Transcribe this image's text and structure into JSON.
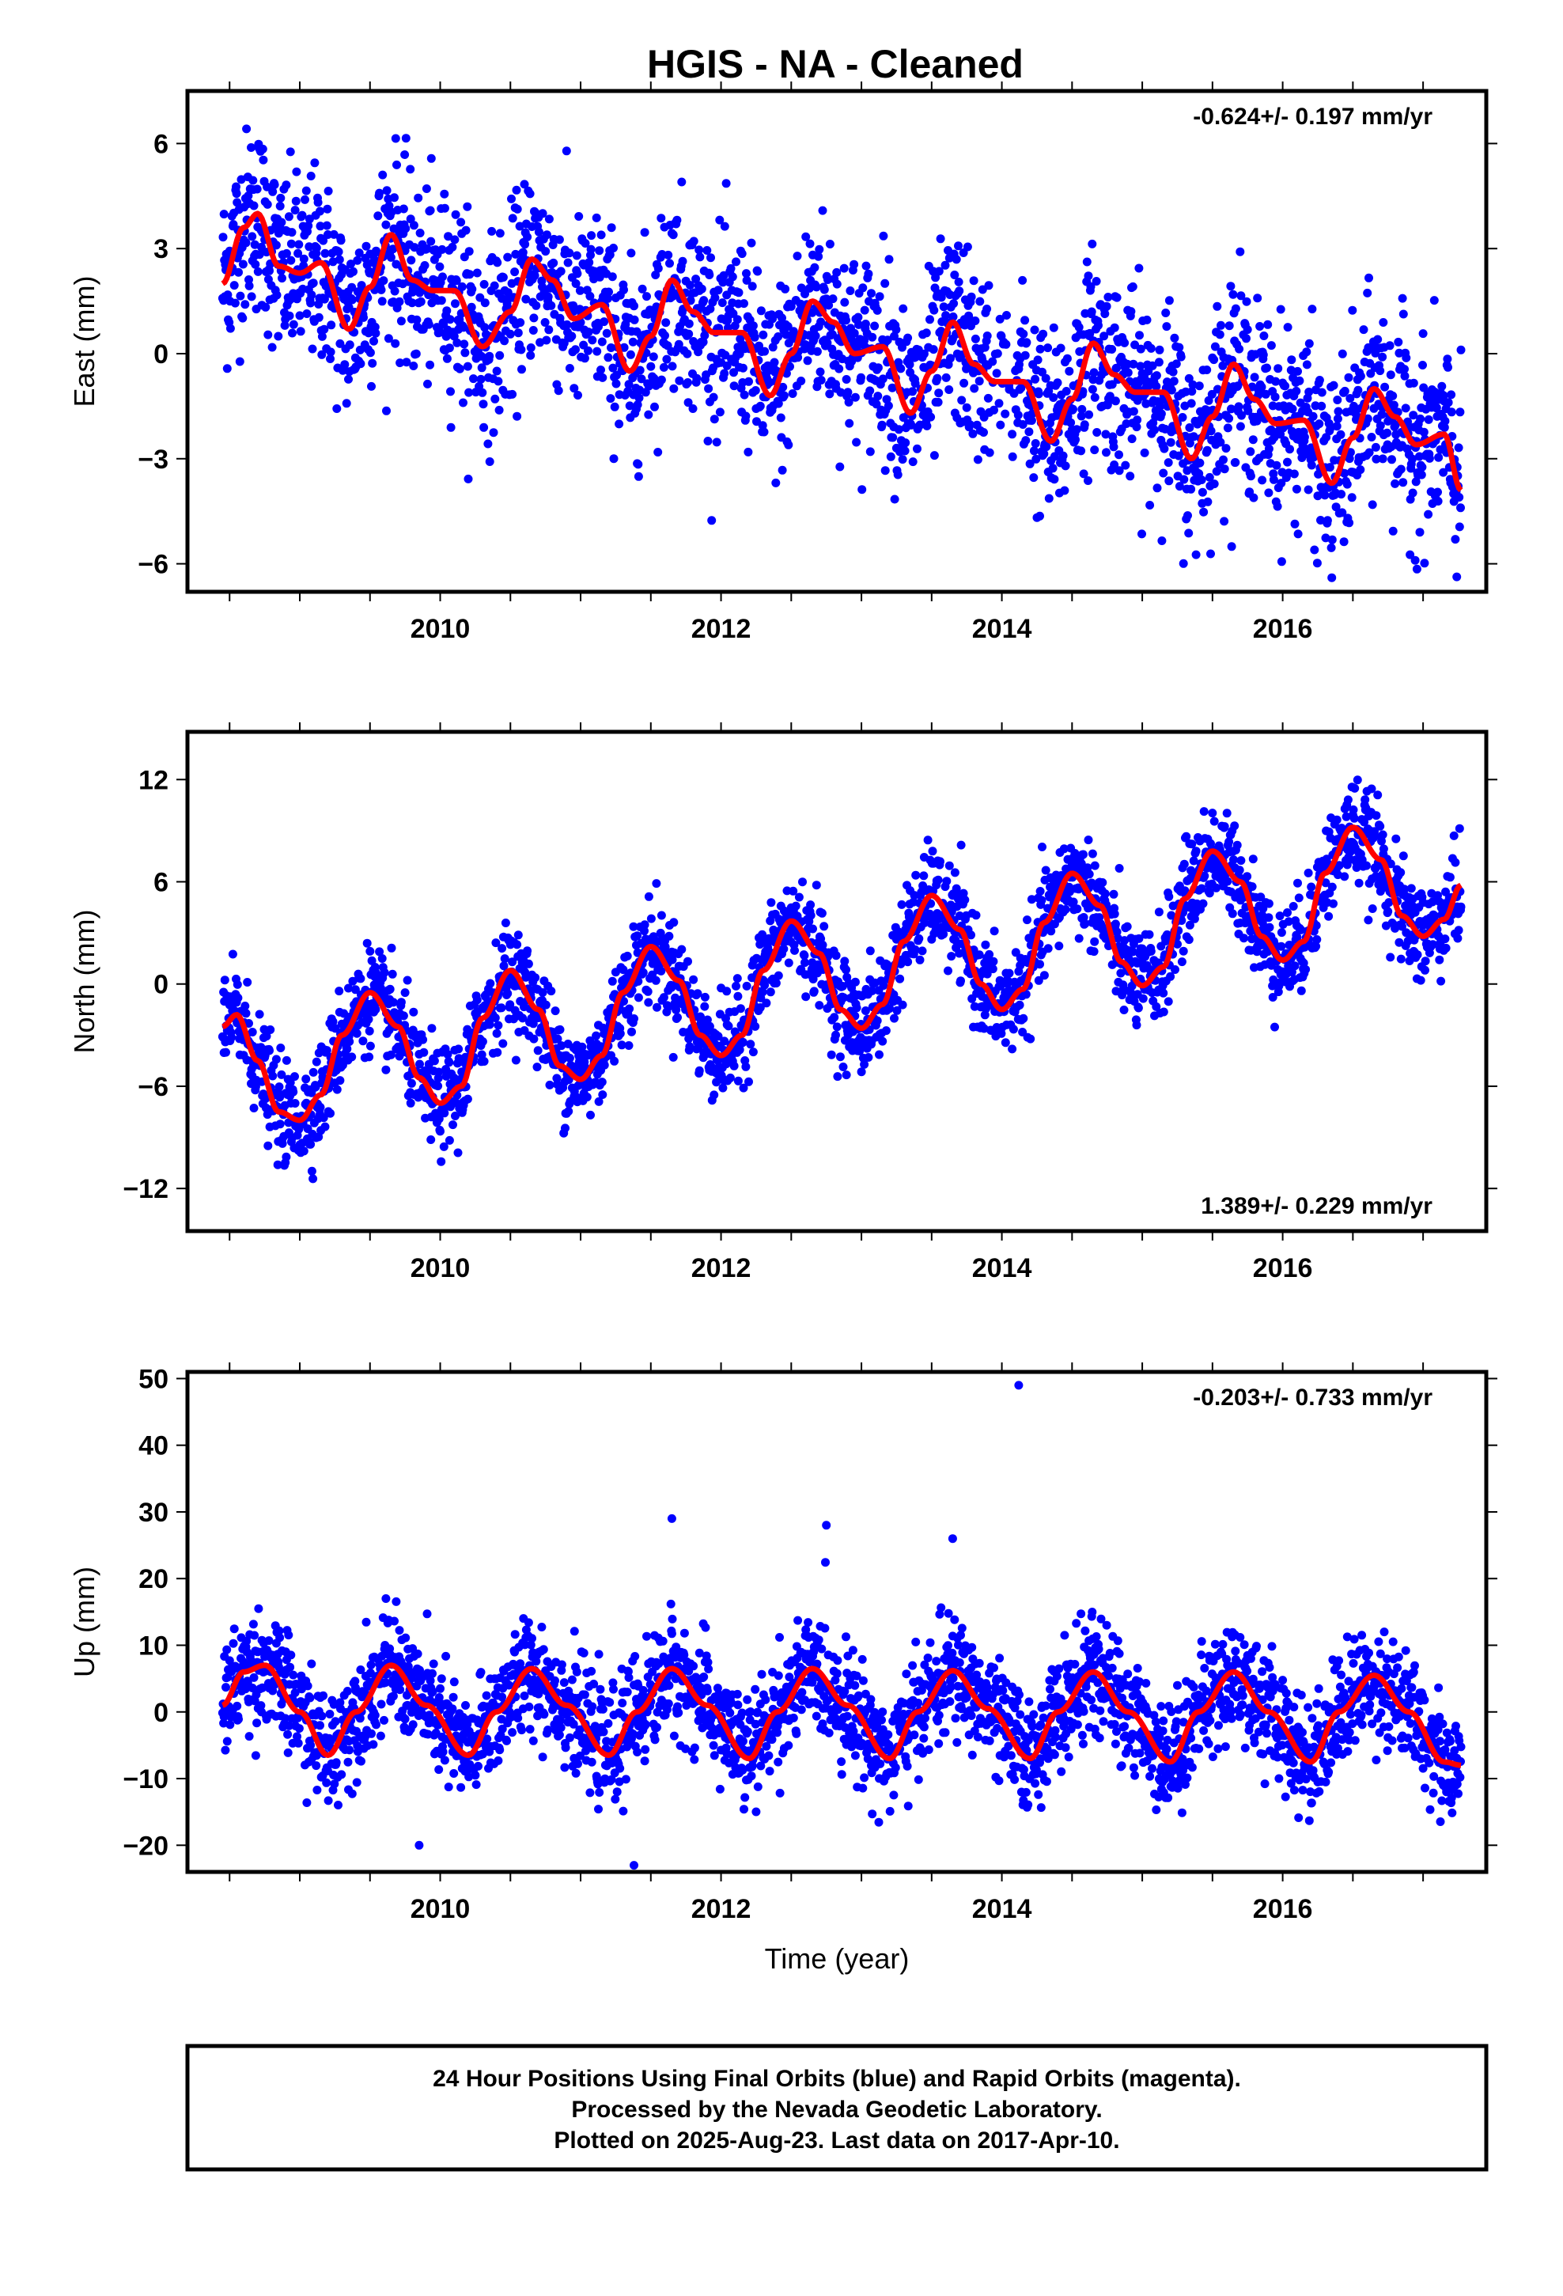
{
  "title": "HGIS  - NA - Cleaned",
  "colors": {
    "points": "#0000ff",
    "model": "#ff0000",
    "frame": "#000000"
  },
  "footer": {
    "line1": "24 Hour Positions Using Final Orbits (blue) and Rapid Orbits (magenta).",
    "line2": "Processed by the Nevada Geodetic Laboratory.",
    "line3": "Plotted on 2025-Aug-23. Last data on 2017-Apr-10."
  },
  "chart_data": [
    {
      "type": "scatter",
      "component": "east",
      "ylabel": "East (mm)",
      "xlabel": "",
      "xlim": [
        2008.2,
        2017.45
      ],
      "ylim": [
        -6.8,
        7.5
      ],
      "xticks": [
        2010,
        2012,
        2014,
        2016
      ],
      "yticks": [
        -6,
        -3,
        0,
        3,
        6
      ],
      "yticklabels": [
        "−6",
        "−3",
        "0",
        "3",
        "6"
      ],
      "rate_label": "-0.624+/- 0.197 mm/yr",
      "rate_position": "top-right",
      "series": [
        {
          "name": "Final Orbits",
          "color": "#0000ff",
          "data_span": [
            2008.45,
            2017.27
          ]
        },
        {
          "name": "Model",
          "color": "#ff0000",
          "x": [
            2008.45,
            2008.6,
            2008.7,
            2008.85,
            2009.0,
            2009.15,
            2009.35,
            2009.5,
            2009.65,
            2009.8,
            2009.95,
            2010.1,
            2010.3,
            2010.5,
            2010.65,
            2010.8,
            2010.95,
            2011.15,
            2011.35,
            2011.5,
            2011.65,
            2011.8,
            2011.95,
            2012.15,
            2012.35,
            2012.5,
            2012.65,
            2012.8,
            2012.95,
            2013.15,
            2013.35,
            2013.5,
            2013.65,
            2013.8,
            2013.95,
            2014.15,
            2014.35,
            2014.5,
            2014.65,
            2014.8,
            2014.95,
            2015.15,
            2015.35,
            2015.5,
            2015.65,
            2015.8,
            2015.95,
            2016.15,
            2016.35,
            2016.5,
            2016.65,
            2016.8,
            2016.95,
            2017.15,
            2017.27
          ],
          "y": [
            2.0,
            3.6,
            4.0,
            2.5,
            2.3,
            2.6,
            0.7,
            1.9,
            3.4,
            2.1,
            1.8,
            1.8,
            0.2,
            1.2,
            2.7,
            2.1,
            1.0,
            1.4,
            -0.5,
            0.5,
            2.1,
            1.2,
            0.6,
            0.6,
            -1.2,
            0.0,
            1.5,
            0.9,
            0.0,
            0.2,
            -1.7,
            -0.5,
            0.9,
            -0.3,
            -0.8,
            -0.8,
            -2.5,
            -1.3,
            0.3,
            -0.6,
            -1.1,
            -1.1,
            -3.0,
            -1.8,
            -0.3,
            -1.3,
            -2.0,
            -1.9,
            -3.7,
            -2.4,
            -1.0,
            -1.8,
            -2.6,
            -2.3,
            -3.9
          ]
        }
      ]
    },
    {
      "type": "scatter",
      "component": "north",
      "ylabel": "North (mm)",
      "xlabel": "",
      "xlim": [
        2008.2,
        2017.45
      ],
      "ylim": [
        -14.5,
        14.8
      ],
      "xticks": [
        2010,
        2012,
        2014,
        2016
      ],
      "yticks": [
        -12,
        -6,
        0,
        6,
        12
      ],
      "yticklabels": [
        "−12",
        "−6",
        "0",
        "6",
        "12"
      ],
      "rate_label": "1.389+/- 0.229 mm/yr",
      "rate_position": "bottom-right",
      "series": [
        {
          "name": "Final Orbits",
          "color": "#0000ff",
          "data_span": [
            2008.45,
            2017.27
          ]
        },
        {
          "name": "Model",
          "color": "#ff0000",
          "x": [
            2008.45,
            2008.55,
            2008.7,
            2008.85,
            2009.0,
            2009.15,
            2009.3,
            2009.5,
            2009.7,
            2009.85,
            2010.0,
            2010.15,
            2010.3,
            2010.5,
            2010.7,
            2010.85,
            2011.0,
            2011.15,
            2011.3,
            2011.5,
            2011.7,
            2011.85,
            2012.0,
            2012.15,
            2012.3,
            2012.5,
            2012.7,
            2012.85,
            2013.0,
            2013.15,
            2013.3,
            2013.5,
            2013.7,
            2013.85,
            2014.0,
            2014.15,
            2014.3,
            2014.5,
            2014.7,
            2014.85,
            2015.0,
            2015.15,
            2015.3,
            2015.5,
            2015.7,
            2015.85,
            2016.0,
            2016.15,
            2016.3,
            2016.5,
            2016.7,
            2016.85,
            2017.0,
            2017.15,
            2017.27
          ],
          "y": [
            -2.5,
            -1.8,
            -4.5,
            -7.5,
            -8.0,
            -6.5,
            -3.0,
            -0.5,
            -2.5,
            -5.5,
            -7.0,
            -6.0,
            -2.0,
            0.8,
            -1.5,
            -4.8,
            -5.6,
            -4.2,
            -0.5,
            2.2,
            0.2,
            -3.0,
            -4.2,
            -3.0,
            0.8,
            3.7,
            1.8,
            -1.5,
            -2.6,
            -1.2,
            2.5,
            5.2,
            3.2,
            0.0,
            -1.5,
            -0.3,
            3.6,
            6.5,
            4.6,
            1.3,
            -0.1,
            1.0,
            5.0,
            7.8,
            6.0,
            2.8,
            1.4,
            2.5,
            6.5,
            9.2,
            7.3,
            4.0,
            2.8,
            3.8,
            5.8
          ]
        }
      ]
    },
    {
      "type": "scatter",
      "component": "up",
      "ylabel": "Up (mm)",
      "xlabel": "Time (year)",
      "xlim": [
        2008.2,
        2017.45
      ],
      "ylim": [
        -24,
        51
      ],
      "xticks": [
        2010,
        2012,
        2014,
        2016
      ],
      "yticks": [
        -20,
        -10,
        0,
        10,
        20,
        30,
        40,
        50
      ],
      "yticklabels": [
        "−20",
        "−10",
        "0",
        "10",
        "20",
        "30",
        "40",
        "50"
      ],
      "rate_label": "-0.203+/- 0.733 mm/yr",
      "rate_position": "top-right",
      "series": [
        {
          "name": "Final Orbits",
          "color": "#0000ff",
          "data_span": [
            2008.45,
            2017.27
          ],
          "outliers": [
            [
              2014.12,
              49
            ],
            [
              2009.85,
              -20
            ],
            [
              2011.38,
              -23
            ],
            [
              2011.65,
              29
            ],
            [
              2012.75,
              28
            ],
            [
              2013.65,
              26
            ]
          ]
        },
        {
          "name": "Model",
          "color": "#ff0000",
          "x": [
            2008.45,
            2008.6,
            2008.75,
            2009.0,
            2009.2,
            2009.4,
            2009.65,
            2009.9,
            2010.2,
            2010.4,
            2010.65,
            2010.9,
            2011.2,
            2011.4,
            2011.65,
            2011.9,
            2012.2,
            2012.4,
            2012.65,
            2012.9,
            2013.2,
            2013.4,
            2013.65,
            2013.9,
            2014.2,
            2014.4,
            2014.65,
            2014.9,
            2015.2,
            2015.4,
            2015.65,
            2015.9,
            2016.2,
            2016.4,
            2016.65,
            2016.9,
            2017.15,
            2017.27
          ],
          "y": [
            1.0,
            6.0,
            7.0,
            0.0,
            -6.5,
            0.0,
            7.0,
            1.0,
            -6.5,
            0.0,
            6.5,
            1.0,
            -6.5,
            0.0,
            6.5,
            1.0,
            -7.0,
            0.0,
            6.5,
            1.0,
            -7.0,
            0.0,
            6.2,
            0.5,
            -7.0,
            0.0,
            6.0,
            0.0,
            -7.5,
            0.0,
            6.0,
            0.0,
            -7.5,
            0.0,
            5.5,
            0.0,
            -7.5,
            -8.0
          ]
        }
      ]
    }
  ]
}
